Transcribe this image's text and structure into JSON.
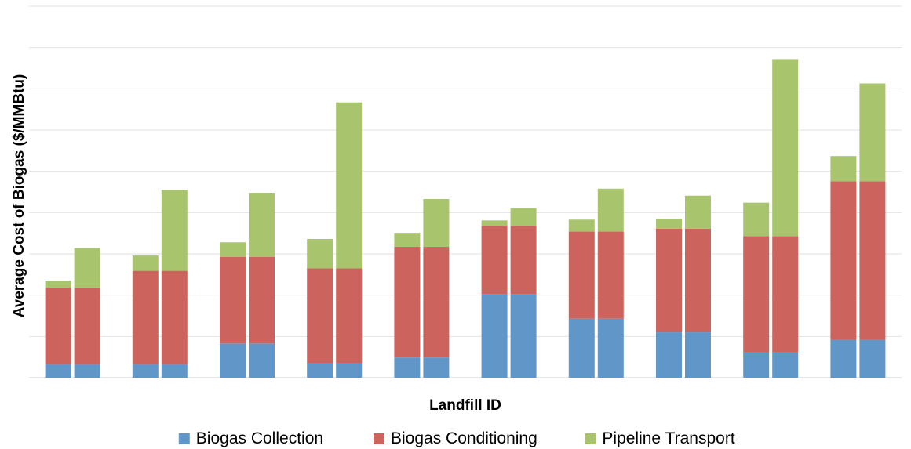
{
  "chart_data": {
    "type": "bar",
    "stacked": true,
    "title": "",
    "xlabel": "Landfill ID",
    "ylabel": "Average Cost of Biogas ($/MMBtu)",
    "ylim": [
      0,
      9
    ],
    "y_grid_step": 1,
    "grid": true,
    "show_y_tick_labels": false,
    "show_x_tick_labels": false,
    "legend_position": "bottom",
    "groups": 10,
    "bars_per_group": 2,
    "colors": {
      "Biogas Collection": "#6196c9",
      "Biogas Conditioning": "#cc635c",
      "Pipeline Transport": "#a8c46c"
    },
    "series": [
      {
        "name": "Biogas Collection",
        "values": [
          0.33,
          0.33,
          0.33,
          0.33,
          0.83,
          0.83,
          0.35,
          0.35,
          0.49,
          0.49,
          2.03,
          2.03,
          1.43,
          1.43,
          1.1,
          1.1,
          0.61,
          0.61,
          0.92,
          0.92
        ]
      },
      {
        "name": "Biogas Conditioning",
        "values": [
          1.85,
          1.85,
          2.26,
          2.26,
          2.1,
          2.1,
          2.3,
          2.3,
          2.68,
          2.68,
          1.65,
          1.65,
          2.11,
          2.11,
          2.51,
          2.51,
          2.82,
          2.82,
          3.84,
          3.84
        ]
      },
      {
        "name": "Pipeline Transport",
        "values": [
          0.17,
          0.96,
          0.37,
          1.96,
          0.35,
          1.55,
          0.71,
          4.02,
          0.34,
          1.16,
          0.13,
          0.43,
          0.29,
          1.04,
          0.24,
          0.8,
          0.81,
          4.29,
          0.61,
          2.37
        ]
      }
    ]
  }
}
